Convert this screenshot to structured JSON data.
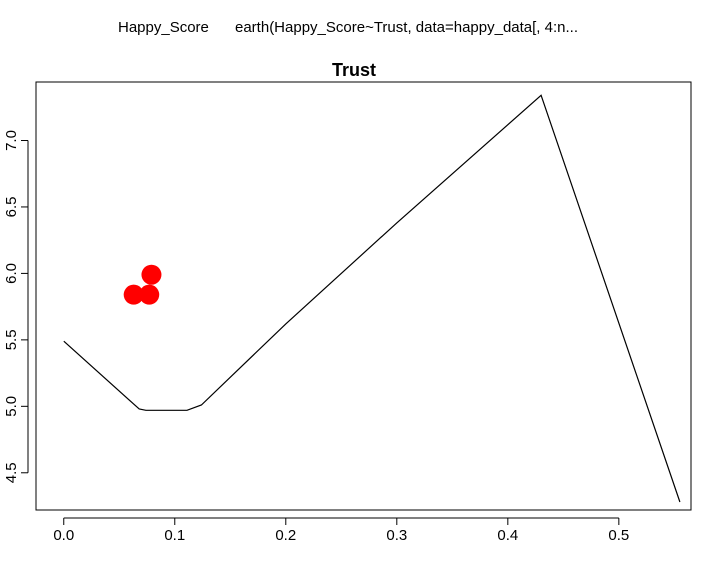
{
  "header": {
    "left": "Happy_Score",
    "right": "earth(Happy_Score~Trust, data=happy_data[, 4:n..."
  },
  "chart_data": {
    "type": "line",
    "title": "Trust",
    "xlabel": "",
    "ylabel": "",
    "xlim": [
      -0.025,
      0.565
    ],
    "ylim": [
      4.22,
      7.44
    ],
    "grid": false,
    "x_ticks": [
      0.0,
      0.1,
      0.2,
      0.3,
      0.4,
      0.5
    ],
    "x_tick_labels": [
      "0.0",
      "0.1",
      "0.2",
      "0.3",
      "0.4",
      "0.5"
    ],
    "y_ticks": [
      4.5,
      5.0,
      5.5,
      6.0,
      6.5,
      7.0
    ],
    "y_tick_labels": [
      "4.5",
      "5.0",
      "5.5",
      "6.0",
      "6.5",
      "7.0"
    ],
    "series": [
      {
        "type": "line",
        "color": "#000000",
        "x": [
          0.0,
          0.068,
          0.074,
          0.111,
          0.124,
          0.2,
          0.3,
          0.43,
          0.555
        ],
        "y": [
          5.49,
          4.98,
          4.97,
          4.97,
          5.01,
          5.62,
          6.38,
          7.34,
          4.28
        ]
      },
      {
        "type": "scatter",
        "color": "#ff0000",
        "x": [
          0.063,
          0.077,
          0.079
        ],
        "y": [
          5.84,
          5.84,
          5.99
        ]
      }
    ]
  }
}
